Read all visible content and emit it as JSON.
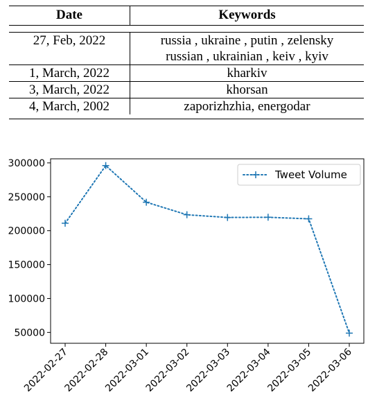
{
  "table": {
    "headers": [
      "Date",
      "Keywords"
    ],
    "rows": [
      {
        "date": "27, Feb, 2022",
        "keywords": [
          "russia , ukraine , putin , zelensky",
          "russian , ukrainian , keiv , kyiv"
        ]
      },
      {
        "date": "1, March, 2022",
        "keywords": [
          "kharkiv"
        ]
      },
      {
        "date": "3, March, 2022",
        "keywords": [
          "khorsan"
        ]
      },
      {
        "date": "4, March, 2002",
        "keywords": [
          "zaporizhzhia, energodar"
        ]
      }
    ]
  },
  "chart_data": {
    "type": "line",
    "x": [
      "2022-02-27",
      "2022-02-28",
      "2022-03-01",
      "2022-03-02",
      "2022-03-03",
      "2022-03-04",
      "2022-03-05",
      "2022-03-06"
    ],
    "series": [
      {
        "name": "Tweet Volume",
        "values": [
          211000,
          296000,
          242000,
          223500,
          219500,
          219800,
          217500,
          49000
        ]
      }
    ],
    "ylim": [
      34000,
      306000
    ],
    "yticks": [
      50000,
      100000,
      150000,
      200000,
      250000,
      300000
    ],
    "ytick_labels": [
      "50000",
      "100000",
      "150000",
      "200000",
      "250000",
      "300000"
    ],
    "line_style": "dotted",
    "marker": "+",
    "color": "#1f77b4",
    "grid": false,
    "legend_position": "upper right",
    "title": "",
    "xlabel": "",
    "ylabel": ""
  }
}
